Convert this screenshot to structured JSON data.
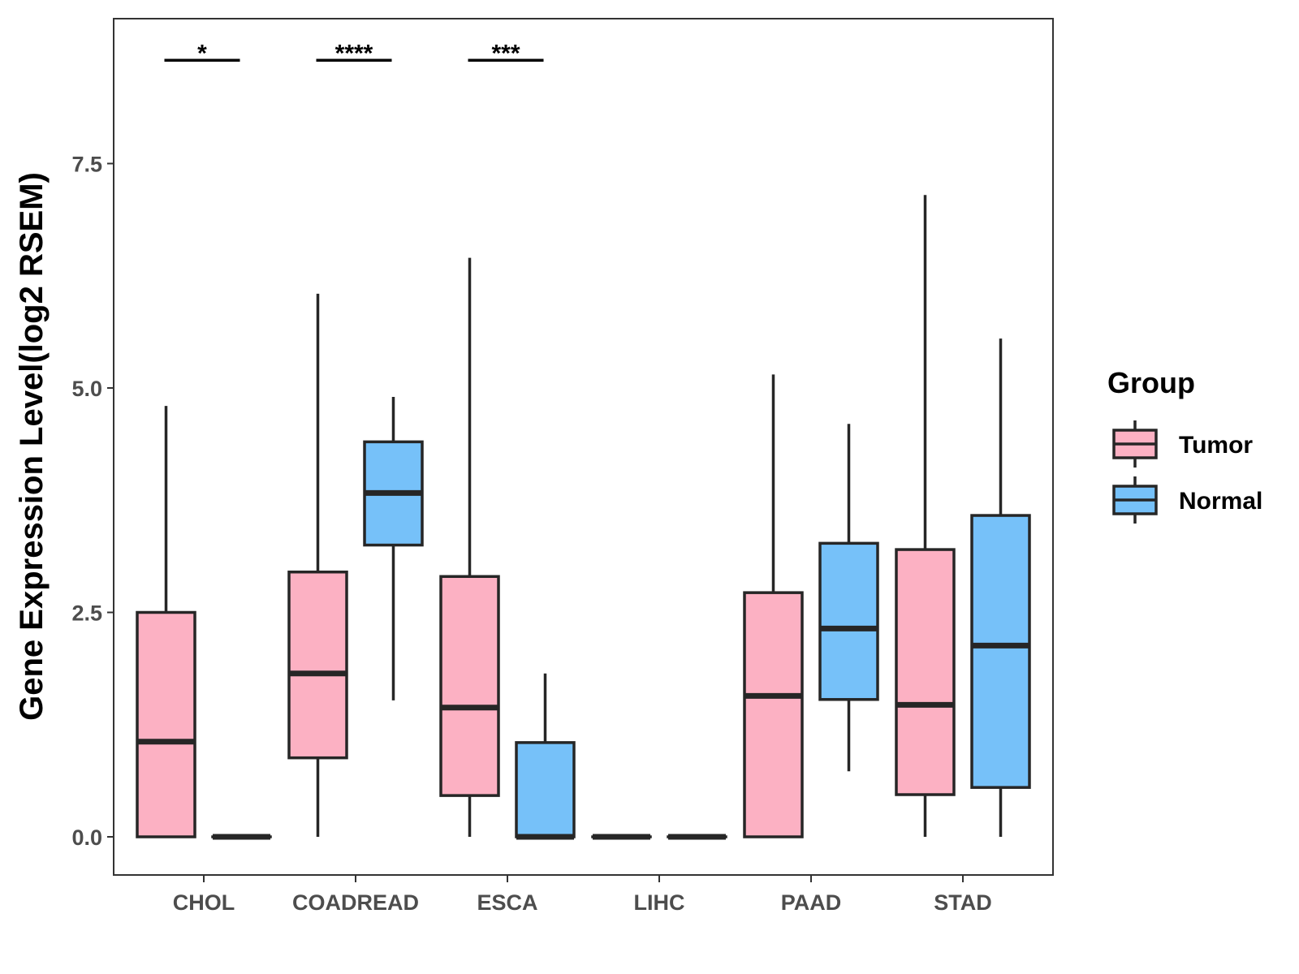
{
  "chart_data": {
    "type": "boxplot",
    "title": "",
    "xlabel": "",
    "ylabel": "Gene Expression Level(log2 RSEM)",
    "ylim": [
      -0.4,
      9.1
    ],
    "yticks": [
      0.0,
      2.5,
      5.0,
      7.5
    ],
    "ytick_labels": [
      "0.0",
      "2.5",
      "5.0",
      "7.5"
    ],
    "categories": [
      "CHOL",
      "COADREAD",
      "ESCA",
      "LIHC",
      "PAAD",
      "STAD"
    ],
    "grid": false,
    "legend": {
      "title": "Group",
      "position": "right",
      "entries": [
        {
          "label": "Tumor",
          "color": "#FCB1C3"
        },
        {
          "label": "Normal",
          "color": "#76C1F9"
        }
      ]
    },
    "series": [
      {
        "name": "Tumor",
        "color": "#FCB1C3",
        "boxes": [
          {
            "category": "CHOL",
            "min": 0.0,
            "q1": 0.0,
            "median": 1.06,
            "q3": 2.5,
            "max": 4.8
          },
          {
            "category": "COADREAD",
            "min": 0.0,
            "q1": 0.88,
            "median": 1.82,
            "q3": 2.95,
            "max": 6.05
          },
          {
            "category": "ESCA",
            "min": 0.0,
            "q1": 0.46,
            "median": 1.44,
            "q3": 2.9,
            "max": 6.45
          },
          {
            "category": "LIHC",
            "min": 0.0,
            "q1": 0.0,
            "median": 0.0,
            "q3": 0.0,
            "max": 0.0
          },
          {
            "category": "PAAD",
            "min": 0.0,
            "q1": 0.0,
            "median": 1.57,
            "q3": 2.72,
            "max": 5.15
          },
          {
            "category": "STAD",
            "min": 0.0,
            "q1": 0.47,
            "median": 1.47,
            "q3": 3.2,
            "max": 7.15
          }
        ]
      },
      {
        "name": "Normal",
        "color": "#76C1F9",
        "boxes": [
          {
            "category": "CHOL",
            "min": 0.0,
            "q1": 0.0,
            "median": 0.0,
            "q3": 0.0,
            "max": 0.0
          },
          {
            "category": "COADREAD",
            "min": 1.52,
            "q1": 3.25,
            "median": 3.83,
            "q3": 4.4,
            "max": 4.9
          },
          {
            "category": "ESCA",
            "min": 0.0,
            "q1": 0.0,
            "median": 0.0,
            "q3": 1.05,
            "max": 1.82
          },
          {
            "category": "LIHC",
            "min": 0.0,
            "q1": 0.0,
            "median": 0.0,
            "q3": 0.0,
            "max": 0.0
          },
          {
            "category": "PAAD",
            "min": 0.73,
            "q1": 1.53,
            "median": 2.32,
            "q3": 3.27,
            "max": 4.6
          },
          {
            "category": "STAD",
            "min": 0.0,
            "q1": 0.55,
            "median": 2.13,
            "q3": 3.58,
            "max": 5.55
          }
        ]
      }
    ],
    "annotations": [
      {
        "category": "CHOL",
        "label": "*",
        "y": 8.65
      },
      {
        "category": "COADREAD",
        "label": "****",
        "y": 8.65
      },
      {
        "category": "ESCA",
        "label": "***",
        "y": 8.65
      }
    ]
  }
}
